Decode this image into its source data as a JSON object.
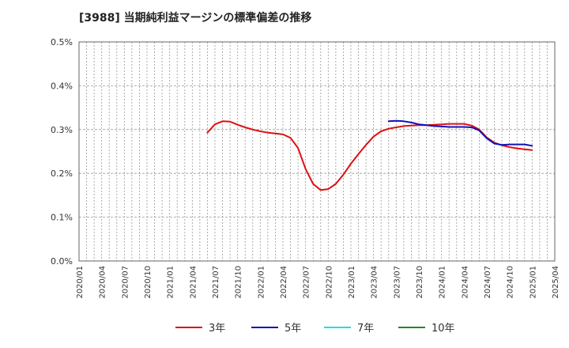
{
  "title": "[3988]  当期純利益マージンの標準偏差の推移",
  "chart_data": {
    "type": "line",
    "title": "[3988]  当期純利益マージンの標準偏差の推移",
    "xlabel": "",
    "ylabel": "",
    "ylim": [
      0.0,
      0.5
    ],
    "y_ticks": [
      "0.0%",
      "0.1%",
      "0.2%",
      "0.3%",
      "0.4%",
      "0.5%"
    ],
    "x_ticks": [
      "2020/01",
      "2020/04",
      "2020/07",
      "2020/10",
      "2021/01",
      "2021/04",
      "2021/07",
      "2021/10",
      "2022/01",
      "2022/04",
      "2022/07",
      "2022/10",
      "2023/01",
      "2023/04",
      "2023/07",
      "2023/10",
      "2024/01",
      "2024/04",
      "2024/07",
      "2024/10",
      "2025/01",
      "2025/04"
    ],
    "grid": true,
    "legend_position": "bottom",
    "series": [
      {
        "name": "3年",
        "color": "#dd1111",
        "x": [
          "2021/06",
          "2021/07",
          "2021/08",
          "2021/09",
          "2021/10",
          "2021/11",
          "2021/12",
          "2022/01",
          "2022/02",
          "2022/03",
          "2022/04",
          "2022/05",
          "2022/06",
          "2022/07",
          "2022/08",
          "2022/09",
          "2022/10",
          "2022/11",
          "2022/12",
          "2023/01",
          "2023/02",
          "2023/03",
          "2023/04",
          "2023/05",
          "2023/06",
          "2023/07",
          "2023/08",
          "2023/09",
          "2023/10",
          "2023/11",
          "2023/12",
          "2024/01",
          "2024/02",
          "2024/03",
          "2024/04",
          "2024/05",
          "2024/06",
          "2024/07",
          "2024/08",
          "2024/09",
          "2024/10",
          "2024/11",
          "2024/12",
          "2025/01"
        ],
        "values": [
          0.293,
          0.312,
          0.319,
          0.318,
          0.311,
          0.305,
          0.3,
          0.296,
          0.293,
          0.291,
          0.289,
          0.281,
          0.258,
          0.21,
          0.176,
          0.162,
          0.164,
          0.176,
          0.197,
          0.222,
          0.244,
          0.265,
          0.284,
          0.296,
          0.302,
          0.305,
          0.308,
          0.309,
          0.31,
          0.31,
          0.311,
          0.312,
          0.313,
          0.313,
          0.313,
          0.309,
          0.3,
          0.282,
          0.27,
          0.264,
          0.26,
          0.257,
          0.255,
          0.253
        ]
      },
      {
        "name": "5年",
        "color": "#1111bb",
        "x": [
          "2023/06",
          "2023/07",
          "2023/08",
          "2023/09",
          "2023/10",
          "2023/11",
          "2023/12",
          "2024/01",
          "2024/02",
          "2024/03",
          "2024/04",
          "2024/05",
          "2024/06",
          "2024/07",
          "2024/08",
          "2024/09",
          "2024/10",
          "2024/11",
          "2024/12",
          "2025/01"
        ],
        "values": [
          0.319,
          0.32,
          0.319,
          0.316,
          0.312,
          0.31,
          0.308,
          0.307,
          0.306,
          0.306,
          0.306,
          0.305,
          0.298,
          0.28,
          0.268,
          0.265,
          0.266,
          0.266,
          0.266,
          0.263
        ]
      },
      {
        "name": "7年",
        "color": "#22dddd",
        "x": [],
        "values": []
      },
      {
        "name": "10年",
        "color": "#228822",
        "x": [],
        "values": []
      }
    ]
  }
}
